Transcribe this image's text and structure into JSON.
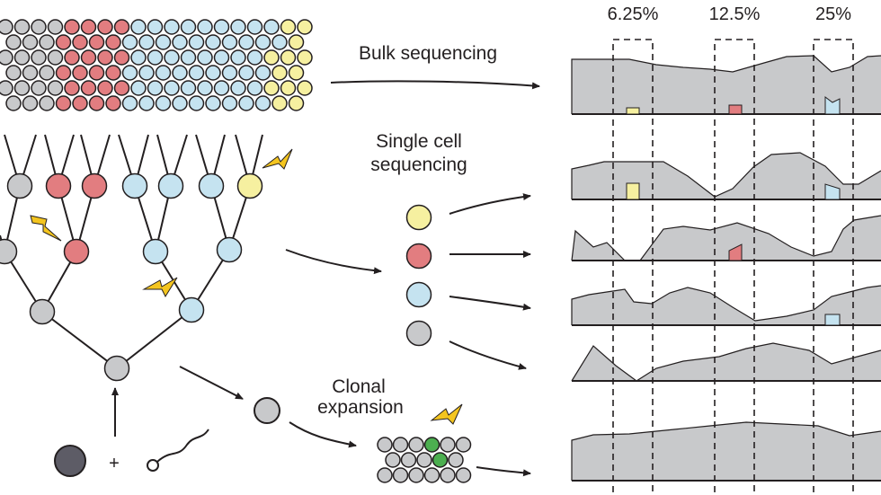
{
  "labels": {
    "bulk": "Bulk sequencing",
    "single_line1": "Single cell",
    "single_line2": "sequencing",
    "clonal_line1": "Clonal",
    "clonal_line2": "expansion",
    "plus": "+"
  },
  "frequencies": [
    "6.25%",
    "12.5%",
    "25%"
  ],
  "colors": {
    "grey": "#c8c9cb",
    "red": "#e27d80",
    "blue": "#c5e3f0",
    "yellow": "#f6f0a0",
    "green": "#4caf50",
    "dark": "#5d5c66",
    "profile": "#c8c9cb",
    "bolt": "#f4c51f",
    "outline": "#231f20"
  }
}
